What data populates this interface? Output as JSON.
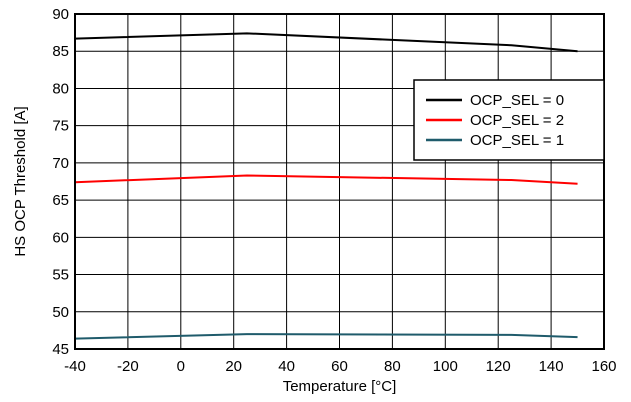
{
  "chart_data": {
    "type": "line",
    "title": "",
    "xlabel": "Temperature [°C]",
    "ylabel": "HS OCP Threshold [A]",
    "xlim": [
      -40,
      160
    ],
    "ylim": [
      45,
      90
    ],
    "xticks": [
      -40,
      -20,
      0,
      20,
      40,
      60,
      80,
      100,
      120,
      140,
      160
    ],
    "yticks": [
      45,
      50,
      55,
      60,
      65,
      70,
      75,
      80,
      85,
      90
    ],
    "grid": true,
    "legend_position": "right",
    "series": [
      {
        "name": "OCP_SEL = 0",
        "color": "#000000",
        "x": [
          -40,
          25,
          125,
          150
        ],
        "y": [
          86.7,
          87.4,
          85.8,
          85.0
        ]
      },
      {
        "name": "OCP_SEL = 2",
        "color": "#ff0000",
        "x": [
          -40,
          25,
          125,
          150
        ],
        "y": [
          67.4,
          68.3,
          67.7,
          67.2
        ]
      },
      {
        "name": "OCP_SEL = 1",
        "color": "#1f5b6b",
        "x": [
          -40,
          25,
          125,
          150
        ],
        "y": [
          46.4,
          47.0,
          46.9,
          46.6
        ]
      }
    ]
  }
}
